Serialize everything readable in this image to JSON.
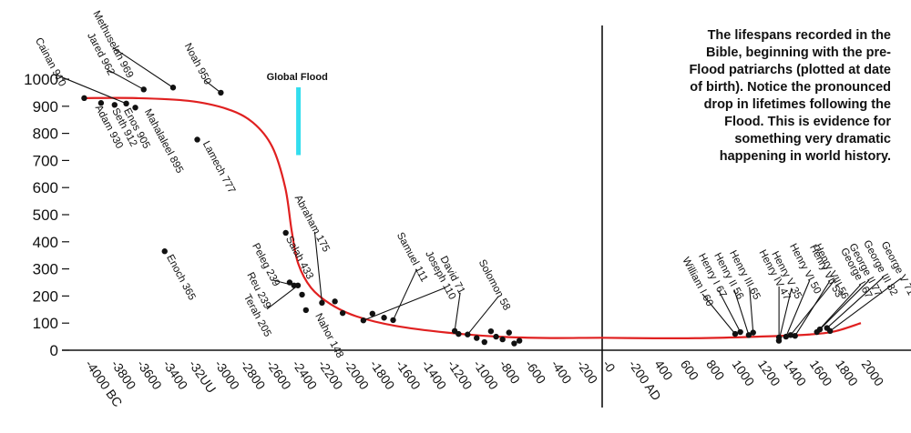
{
  "chart_data": {
    "type": "scatter",
    "title": "",
    "xlabel": "",
    "ylabel": "",
    "ylim": [
      0,
      1000
    ],
    "y_ticks": [
      "0",
      "100",
      "200",
      "300",
      "400",
      "500",
      "600",
      "700",
      "800",
      "900",
      "1000"
    ],
    "x_ticks": [
      {
        "value": -4000,
        "label": "-4000 BC"
      },
      {
        "value": -3800,
        "label": "-3800"
      },
      {
        "value": -3600,
        "label": "-3600"
      },
      {
        "value": -3400,
        "label": "-3400"
      },
      {
        "value": -3200,
        "label": "-32UU"
      },
      {
        "value": -3000,
        "label": "-3000"
      },
      {
        "value": -2800,
        "label": "-2800"
      },
      {
        "value": -2600,
        "label": "-2600"
      },
      {
        "value": -2400,
        "label": "-2400"
      },
      {
        "value": -2200,
        "label": "-2200"
      },
      {
        "value": -2000,
        "label": "-2000"
      },
      {
        "value": -1800,
        "label": "-1800"
      },
      {
        "value": -1600,
        "label": "-1600"
      },
      {
        "value": -1400,
        "label": "-1400"
      },
      {
        "value": -1200,
        "label": "-1200"
      },
      {
        "value": -1000,
        "label": "-1000"
      },
      {
        "value": -800,
        "label": "-800"
      },
      {
        "value": -600,
        "label": "-600"
      },
      {
        "value": -400,
        "label": "-400"
      },
      {
        "value": -200,
        "label": "-200"
      },
      {
        "value": 0,
        "label": "-0"
      },
      {
        "value": 200,
        "label": "-200 AD"
      },
      {
        "value": 400,
        "label": "400"
      },
      {
        "value": 600,
        "label": "600"
      },
      {
        "value": 800,
        "label": "800"
      },
      {
        "value": 1000,
        "label": "1000"
      },
      {
        "value": 1200,
        "label": "1200"
      },
      {
        "value": 1400,
        "label": "1400"
      },
      {
        "value": 1600,
        "label": "1600"
      },
      {
        "value": 1800,
        "label": "1800"
      },
      {
        "value": 2000,
        "label": "2000"
      }
    ],
    "flood": {
      "label": "Global Flood",
      "year": -2348,
      "range": [
        720,
        970
      ]
    },
    "trend": [
      {
        "x": -4000,
        "y": 930
      },
      {
        "x": -3600,
        "y": 930
      },
      {
        "x": -3200,
        "y": 920
      },
      {
        "x": -2900,
        "y": 890
      },
      {
        "x": -2700,
        "y": 840
      },
      {
        "x": -2550,
        "y": 750
      },
      {
        "x": -2450,
        "y": 600
      },
      {
        "x": -2400,
        "y": 440
      },
      {
        "x": -2350,
        "y": 320
      },
      {
        "x": -2250,
        "y": 230
      },
      {
        "x": -2100,
        "y": 170
      },
      {
        "x": -1900,
        "y": 125
      },
      {
        "x": -1600,
        "y": 90
      },
      {
        "x": -1200,
        "y": 65
      },
      {
        "x": -800,
        "y": 50
      },
      {
        "x": -400,
        "y": 45
      },
      {
        "x": 0,
        "y": 46
      },
      {
        "x": 400,
        "y": 44
      },
      {
        "x": 800,
        "y": 45
      },
      {
        "x": 1200,
        "y": 50
      },
      {
        "x": 1600,
        "y": 58
      },
      {
        "x": 1800,
        "y": 70
      },
      {
        "x": 2000,
        "y": 100
      }
    ],
    "points": [
      {
        "x": -4004,
        "y": 930,
        "label": "Adam 930",
        "lx": 12,
        "ly": 10,
        "angle": 62
      },
      {
        "x": -3874,
        "y": 912,
        "label": "Seth 912",
        "lx": 12,
        "ly": 8,
        "angle": 62
      },
      {
        "x": -3769,
        "y": 905,
        "label": "Enos 905",
        "lx": 10,
        "ly": 6,
        "angle": 62
      },
      {
        "x": -3679,
        "y": 910,
        "label": "Cainan 910",
        "lx": -100,
        "ly": -70,
        "angle": 62
      },
      {
        "x": -3609,
        "y": 895,
        "label": "Mahalaleel 895",
        "lx": 10,
        "ly": 4,
        "angle": 62
      },
      {
        "x": -3544,
        "y": 962,
        "label": "Jared 962",
        "lx": -62,
        "ly": -60,
        "angle": 62
      },
      {
        "x": -3382,
        "y": 365,
        "label": "Enoch 365",
        "lx": 2,
        "ly": 6,
        "angle": 62
      },
      {
        "x": -3317,
        "y": 969,
        "label": "Methuselah 969",
        "lx": -88,
        "ly": -82,
        "angle": 62
      },
      {
        "x": -3130,
        "y": 777,
        "label": "Lamech 777",
        "lx": 6,
        "ly": 4,
        "angle": 62
      },
      {
        "x": -2948,
        "y": 950,
        "label": "Noah 950",
        "lx": -40,
        "ly": -52,
        "angle": 62
      },
      {
        "x": -2446,
        "y": 433,
        "label": "Salah 433",
        "lx": 0,
        "ly": 6,
        "angle": 62
      },
      {
        "x": -2416,
        "y": 250,
        "label": "",
        "lx": 0,
        "ly": 0,
        "angle": 0
      },
      {
        "x": -2382,
        "y": 239,
        "label": "Peleg 239",
        "lx": -46,
        "ly": -44,
        "angle": 62
      },
      {
        "x": -2352,
        "y": 239,
        "label": "Reu 239",
        "lx": -56,
        "ly": -12,
        "angle": 62
      },
      {
        "x": -2320,
        "y": 205,
        "label": "Terah 205",
        "lx": -64,
        "ly": 2,
        "angle": 62
      },
      {
        "x": -2290,
        "y": 148,
        "label": "Nahor 148",
        "lx": 10,
        "ly": 6,
        "angle": 62
      },
      {
        "x": -2166,
        "y": 175,
        "label": "Abraham 175",
        "lx": -30,
        "ly": -116,
        "angle": 62
      },
      {
        "x": -2066,
        "y": 180,
        "label": "",
        "lx": 0,
        "ly": 0,
        "angle": 0
      },
      {
        "x": -2006,
        "y": 137,
        "label": "",
        "lx": 0,
        "ly": 0,
        "angle": 0
      },
      {
        "x": -1846,
        "y": 110,
        "label": "Joseph 110",
        "lx": 68,
        "ly": -74,
        "angle": 62
      },
      {
        "x": -1776,
        "y": 135,
        "label": "",
        "lx": 0,
        "ly": 0,
        "angle": 0
      },
      {
        "x": -1686,
        "y": 120,
        "label": "",
        "lx": 0,
        "ly": 0,
        "angle": 0
      },
      {
        "x": -1616,
        "y": 111,
        "label": "Samuel 111",
        "lx": 4,
        "ly": -94,
        "angle": 62
      },
      {
        "x": -1140,
        "y": 71,
        "label": "David 71",
        "lx": -16,
        "ly": -80,
        "angle": 62
      },
      {
        "x": -1040,
        "y": 58,
        "label": "Solomon 58",
        "lx": 12,
        "ly": -80,
        "angle": 62
      },
      {
        "x": -1110,
        "y": 60,
        "label": "",
        "lx": 0,
        "ly": 0,
        "angle": 0
      },
      {
        "x": -970,
        "y": 45,
        "label": "",
        "lx": 0,
        "ly": 0,
        "angle": 0
      },
      {
        "x": -910,
        "y": 30,
        "label": "",
        "lx": 0,
        "ly": 0,
        "angle": 0
      },
      {
        "x": -860,
        "y": 70,
        "label": "",
        "lx": 0,
        "ly": 0,
        "angle": 0
      },
      {
        "x": -820,
        "y": 50,
        "label": "",
        "lx": 0,
        "ly": 0,
        "angle": 0
      },
      {
        "x": -770,
        "y": 40,
        "label": "",
        "lx": 0,
        "ly": 0,
        "angle": 0
      },
      {
        "x": -720,
        "y": 65,
        "label": "",
        "lx": 0,
        "ly": 0,
        "angle": 0
      },
      {
        "x": -680,
        "y": 25,
        "label": "",
        "lx": 0,
        "ly": 0,
        "angle": 0
      },
      {
        "x": -640,
        "y": 35,
        "label": "",
        "lx": 0,
        "ly": 0,
        "angle": 0
      },
      {
        "x": 1028,
        "y": 60,
        "label": "William I 60",
        "lx": -58,
        "ly": -82,
        "angle": 62
      },
      {
        "x": 1068,
        "y": 67,
        "label": "Henry I 67",
        "lx": -46,
        "ly": -84,
        "angle": 62
      },
      {
        "x": 1133,
        "y": 56,
        "label": "Henry II 56",
        "lx": -38,
        "ly": -88,
        "angle": 62
      },
      {
        "x": 1167,
        "y": 65,
        "label": "Henry III 65",
        "lx": -26,
        "ly": -88,
        "angle": 62
      },
      {
        "x": 1366,
        "y": 35,
        "label": "Henry V 35",
        "lx": -8,
        "ly": -96,
        "angle": 62
      },
      {
        "x": 1421,
        "y": 50,
        "label": "Henry VI 50",
        "lx": 4,
        "ly": -100,
        "angle": 62
      },
      {
        "x": 1367,
        "y": 47,
        "label": "Henry IV 47",
        "lx": -22,
        "ly": -94,
        "angle": 62
      },
      {
        "x": 1491,
        "y": 53,
        "label": "Henry VII 53",
        "lx": 16,
        "ly": -98,
        "angle": 62
      },
      {
        "x": 1457,
        "y": 56,
        "label": "Henry VIII 56",
        "lx": 26,
        "ly": -98,
        "angle": 62
      },
      {
        "x": 1660,
        "y": 67,
        "label": "George I 67",
        "lx": 26,
        "ly": -90,
        "angle": 62
      },
      {
        "x": 1683,
        "y": 77,
        "label": "George II 77",
        "lx": 32,
        "ly": -92,
        "angle": 62
      },
      {
        "x": 1738,
        "y": 82,
        "label": "George III 82",
        "lx": 40,
        "ly": -94,
        "angle": 62
      },
      {
        "x": 1762,
        "y": 71,
        "label": "George V 71",
        "lx": 56,
        "ly": -96,
        "angle": 62
      }
    ]
  },
  "caption": {
    "lines": [
      "The lifespans recorded in the",
      "Bible, beginning with the pre-",
      "Flood patriarchs (plotted at date",
      "of birth).  Notice the pronounced",
      "drop in lifetimes following the",
      "Flood.  This is evidence for",
      "something very dramatic",
      "happening in world history."
    ]
  },
  "colors": {
    "axis": "#111111",
    "points": "#111111",
    "trend": "#e02020",
    "flood": "#33ddee"
  }
}
